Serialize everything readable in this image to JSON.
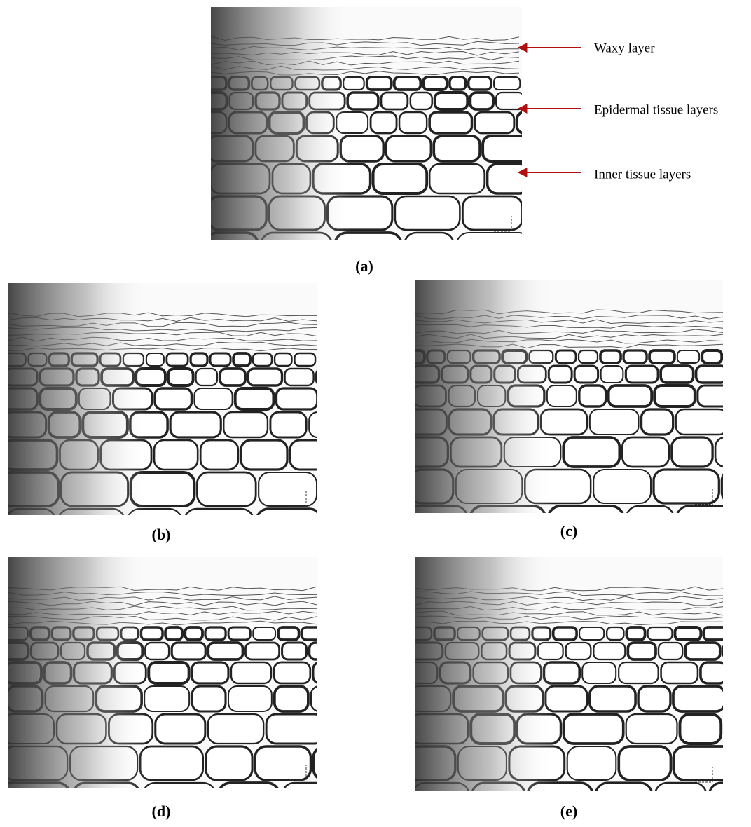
{
  "panels": [
    {
      "label": "(a)"
    },
    {
      "label": "(b)"
    },
    {
      "label": "(c)"
    },
    {
      "label": "(d)"
    },
    {
      "label": "(e)"
    }
  ],
  "annotations": [
    {
      "text": "Waxy layer"
    },
    {
      "text": "Epidermal tissue layers"
    },
    {
      "text": "Inner tissue layers"
    }
  ]
}
